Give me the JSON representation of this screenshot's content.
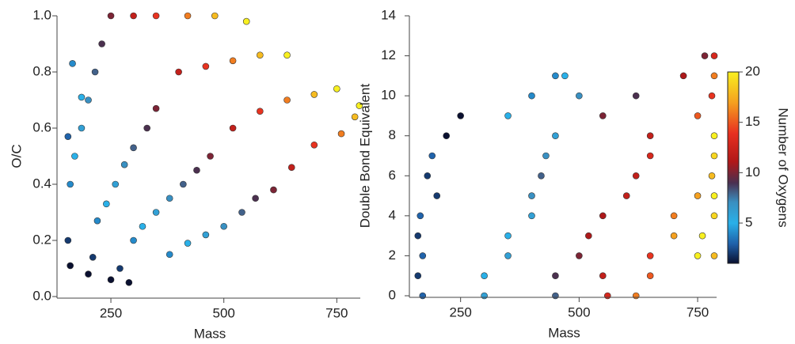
{
  "chart_data": [
    {
      "type": "scatter",
      "xlabel": "Mass",
      "ylabel": "O/C",
      "xlim": [
        136,
        802
      ],
      "ylim": [
        0,
        1
      ],
      "xticks": [
        250,
        500,
        750
      ],
      "yticks": [
        {
          "value": 0,
          "label": "0.0"
        },
        0.2,
        0.4,
        0.6,
        0.8,
        {
          "value": 1,
          "label": "1.0"
        }
      ],
      "x": [
        160,
        200,
        250,
        290,
        155,
        210,
        270,
        160,
        220,
        300,
        380,
        170,
        240,
        320,
        420,
        185,
        260,
        350,
        460,
        200,
        280,
        380,
        500,
        215,
        300,
        410,
        540,
        230,
        330,
        440,
        570,
        250,
        350,
        470,
        610,
        300,
        400,
        520,
        650,
        350,
        460,
        580,
        700,
        420,
        520,
        640,
        760,
        480,
        580,
        700,
        790,
        550,
        640,
        750,
        800,
        165,
        185,
        155
      ],
      "y": [
        0.11,
        0.08,
        0.06,
        0.05,
        0.2,
        0.14,
        0.1,
        0.4,
        0.27,
        0.2,
        0.15,
        0.5,
        0.33,
        0.25,
        0.19,
        0.6,
        0.4,
        0.3,
        0.22,
        0.7,
        0.47,
        0.35,
        0.25,
        0.8,
        0.53,
        0.4,
        0.3,
        0.9,
        0.6,
        0.45,
        0.35,
        1.0,
        0.67,
        0.5,
        0.38,
        1.0,
        0.8,
        0.6,
        0.46,
        1.0,
        0.82,
        0.66,
        0.54,
        1.0,
        0.84,
        0.7,
        0.58,
        1.0,
        0.86,
        0.72,
        0.64,
        0.98,
        0.86,
        0.74,
        0.68,
        0.83,
        0.71,
        0.57
      ],
      "oxygens": [
        1,
        1,
        1,
        1,
        2,
        2,
        2,
        4,
        4,
        4,
        4,
        5,
        5,
        5,
        5,
        6,
        6,
        6,
        6,
        7,
        7,
        7,
        7,
        8,
        8,
        8,
        8,
        9,
        9,
        9,
        9,
        10,
        10,
        10,
        10,
        12,
        12,
        12,
        12,
        14,
        14,
        14,
        14,
        16,
        16,
        16,
        16,
        18,
        18,
        18,
        18,
        20,
        20,
        20,
        20,
        4,
        5,
        3
      ]
    },
    {
      "type": "scatter",
      "xlabel": "Mass",
      "ylabel": "Double Bond Equivalent",
      "xlim": [
        147,
        790
      ],
      "ylim": [
        0,
        14
      ],
      "xticks": [
        250,
        500,
        750
      ],
      "yticks": [
        0,
        2,
        4,
        6,
        8,
        10,
        12,
        14
      ],
      "x": [
        170,
        300,
        450,
        560,
        620,
        160,
        300,
        450,
        550,
        650,
        170,
        350,
        500,
        650,
        750,
        785,
        160,
        350,
        520,
        700,
        760,
        165,
        400,
        550,
        700,
        785,
        200,
        400,
        600,
        750,
        785,
        180,
        420,
        620,
        780,
        190,
        430,
        650,
        785,
        220,
        450,
        650,
        785,
        250,
        350,
        550,
        750,
        400,
        500,
        620,
        780,
        450,
        470,
        720,
        785,
        765,
        785
      ],
      "y": [
        0,
        0,
        0,
        0,
        0,
        1,
        1,
        1,
        1,
        1,
        2,
        2,
        2,
        2,
        2,
        2,
        3,
        3,
        3,
        3,
        3,
        4,
        4,
        4,
        4,
        4,
        5,
        5,
        5,
        5,
        5,
        6,
        6,
        6,
        6,
        7,
        7,
        7,
        7,
        8,
        8,
        8,
        8,
        9,
        9,
        9,
        9,
        10,
        10,
        10,
        10,
        11,
        11,
        11,
        11,
        12,
        12
      ],
      "oxygens": [
        3,
        6,
        8,
        13,
        16,
        2,
        5,
        9,
        12,
        15,
        3,
        6,
        10,
        14,
        20,
        18,
        2,
        5,
        11,
        17,
        20,
        3,
        6,
        11,
        16,
        19,
        2,
        7,
        12,
        17,
        20,
        2,
        8,
        12,
        18,
        3,
        7,
        13,
        19,
        1,
        6,
        12,
        20,
        1,
        5,
        10,
        15,
        4,
        7,
        9,
        14,
        4,
        5,
        11,
        16,
        10,
        13
      ],
      "clabel": "Number of Oxygens",
      "clim": [
        1,
        20
      ],
      "cticks": [
        5,
        10,
        15,
        20
      ]
    }
  ]
}
